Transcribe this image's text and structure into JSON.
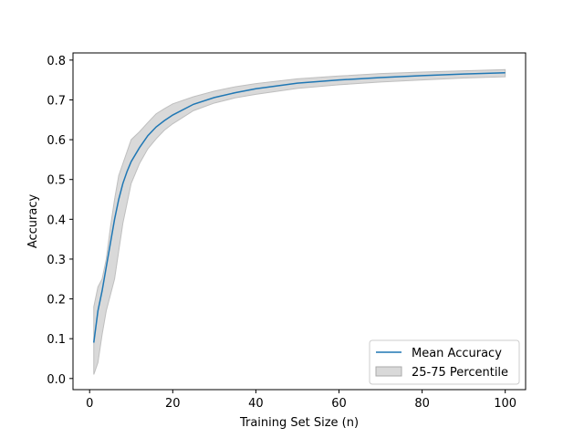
{
  "chart_data": {
    "type": "line",
    "title": "",
    "xlabel": "Training Set Size (n)",
    "ylabel": "Accuracy",
    "xlim": [
      -4.0,
      104.9
    ],
    "ylim": [
      -0.028,
      0.818
    ],
    "xticks": [
      0,
      20,
      40,
      60,
      80,
      100
    ],
    "xtick_labels": [
      "0",
      "20",
      "40",
      "60",
      "80",
      "100"
    ],
    "yticks": [
      0.0,
      0.1,
      0.2,
      0.3,
      0.4,
      0.5,
      0.6,
      0.7,
      0.8
    ],
    "ytick_labels": [
      "0.0",
      "0.1",
      "0.2",
      "0.3",
      "0.4",
      "0.5",
      "0.6",
      "0.7",
      "0.8"
    ],
    "grid": false,
    "legend_position": "lower-right",
    "x": [
      1,
      2,
      3,
      4,
      5,
      6,
      7,
      8,
      9,
      10,
      12,
      14,
      16,
      18,
      20,
      25,
      30,
      35,
      40,
      50,
      60,
      70,
      80,
      90,
      100
    ],
    "series": [
      {
        "name": "Mean Accuracy",
        "color": "#1f77b4",
        "values": [
          0.09,
          0.17,
          0.22,
          0.28,
          0.34,
          0.4,
          0.45,
          0.49,
          0.52,
          0.545,
          0.58,
          0.61,
          0.632,
          0.648,
          0.662,
          0.689,
          0.706,
          0.718,
          0.728,
          0.742,
          0.75,
          0.756,
          0.761,
          0.765,
          0.768
        ]
      }
    ],
    "band": {
      "name": "25-75 Percentile",
      "color": "#bfbfbf",
      "lower": [
        0.01,
        0.04,
        0.11,
        0.17,
        0.21,
        0.25,
        0.32,
        0.39,
        0.44,
        0.49,
        0.54,
        0.577,
        0.602,
        0.624,
        0.64,
        0.673,
        0.692,
        0.705,
        0.714,
        0.729,
        0.738,
        0.745,
        0.75,
        0.755,
        0.758
      ],
      "upper": [
        0.18,
        0.23,
        0.25,
        0.3,
        0.38,
        0.45,
        0.51,
        0.54,
        0.57,
        0.6,
        0.62,
        0.643,
        0.665,
        0.678,
        0.69,
        0.708,
        0.722,
        0.733,
        0.741,
        0.753,
        0.76,
        0.766,
        0.77,
        0.773,
        0.776
      ]
    }
  }
}
